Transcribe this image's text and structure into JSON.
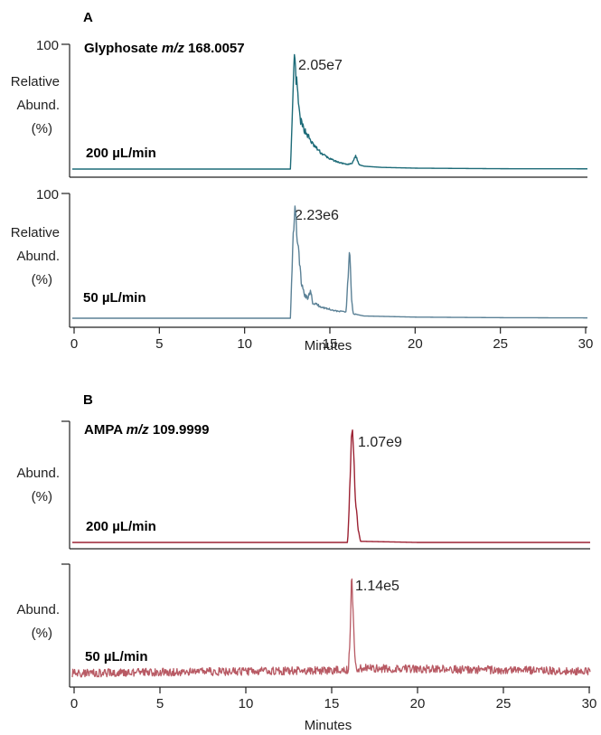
{
  "figure": {
    "panel_a_letter": "A",
    "panel_b_letter": "B"
  },
  "chart_data": [
    {
      "type": "line",
      "panel": "A",
      "compound_name": "Glyphosate",
      "mz_italic": "m/z",
      "mz_value": "168.0057",
      "ylabel_line1": "Relative",
      "ylabel_line2": "Abund.",
      "ylabel_line3": "(%)",
      "y_top_tick": "100",
      "flow_rate": "200 µL/min",
      "intensity_label": "2.05e7",
      "xlim": [
        0,
        30
      ],
      "ylim": [
        0,
        100
      ],
      "color": "#1d6b78",
      "grid": false,
      "series": [
        {
          "x": [
            0,
            12.7,
            12.85,
            12.93,
            13.0,
            13.1,
            13.25,
            13.4,
            13.7,
            14.0,
            14.5,
            15.0,
            15.5,
            16.0,
            16.3,
            16.5,
            16.7,
            17.0,
            18.0,
            20.0,
            25.0,
            30.0
          ],
          "y": [
            0,
            0,
            60,
            100,
            85,
            70,
            45,
            38,
            30,
            22,
            14,
            9,
            6,
            4,
            5,
            12,
            4,
            2.5,
            1.5,
            0.8,
            0.3,
            0.2
          ]
        }
      ]
    },
    {
      "type": "line",
      "panel": "A",
      "ylabel_line1": "Relative",
      "ylabel_line2": "Abund.",
      "ylabel_line3": "(%)",
      "y_top_tick": "100",
      "flow_rate": "50 µL/min",
      "intensity_label": "2.23e6",
      "xlim": [
        0,
        30
      ],
      "ylim": [
        0,
        100
      ],
      "xlabel": "Minutes",
      "x_ticks": [
        "0",
        "5",
        "10",
        "15",
        "20",
        "25",
        "30"
      ],
      "color": "#5b8196",
      "grid": false,
      "series": [
        {
          "x": [
            0,
            12.7,
            12.85,
            12.95,
            13.05,
            13.2,
            13.35,
            13.55,
            13.7,
            13.9,
            14.0,
            14.5,
            15.0,
            15.5,
            15.95,
            16.05,
            16.15,
            16.25,
            16.35,
            17.0,
            20.0,
            25.0,
            30.0
          ],
          "y": [
            0,
            0,
            70,
            100,
            82,
            55,
            30,
            20,
            18,
            24,
            14,
            10,
            8,
            6,
            6,
            35,
            62,
            20,
            4,
            2,
            1,
            0.5,
            0.3
          ]
        }
      ]
    },
    {
      "type": "line",
      "panel": "B",
      "compound_name": "AMPA",
      "mz_italic": "m/z",
      "mz_value": "109.9999",
      "ylabel_line1": "Abund.",
      "ylabel_line2": "(%)",
      "flow_rate": "200 µL/min",
      "intensity_label": "1.07e9",
      "xlim": [
        0,
        30
      ],
      "ylim": [
        0,
        100
      ],
      "color": "#9c2233",
      "grid": false,
      "series": [
        {
          "x": [
            0,
            15.95,
            16.05,
            16.15,
            16.22,
            16.3,
            16.4,
            16.55,
            16.7,
            20.0,
            30.0
          ],
          "y": [
            0,
            0,
            35,
            85,
            100,
            80,
            40,
            12,
            1,
            0,
            0
          ]
        }
      ]
    },
    {
      "type": "line",
      "panel": "B",
      "ylabel_line1": "Abund.",
      "ylabel_line2": "(%)",
      "flow_rate": "50 µL/min",
      "intensity_label": "1.14e5",
      "xlim": [
        0,
        30
      ],
      "ylim": [
        0,
        100
      ],
      "xlabel": "Minutes",
      "x_ticks": [
        "0",
        "5",
        "10",
        "15",
        "20",
        "25",
        "30"
      ],
      "color": "#b85a64",
      "grid": false,
      "baseline_noise_level": 8,
      "series": [
        {
          "x": [
            0,
            16.0,
            16.1,
            16.18,
            16.26,
            16.35,
            16.5,
            30.0
          ],
          "y": [
            3,
            6,
            45,
            100,
            70,
            20,
            8,
            5
          ]
        }
      ]
    }
  ]
}
